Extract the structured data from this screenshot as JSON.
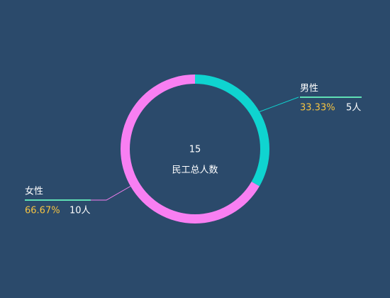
{
  "chart_data": {
    "type": "donut",
    "categories": [
      "男性",
      "女性"
    ],
    "values": [
      5,
      10
    ],
    "value_labels": [
      "5人",
      "10人"
    ],
    "percent_labels": [
      "33.33%",
      "66.67%"
    ],
    "colors": [
      "#0fd4d0",
      "#f87ff2"
    ],
    "total": 15,
    "total_label": "民工总人数"
  }
}
